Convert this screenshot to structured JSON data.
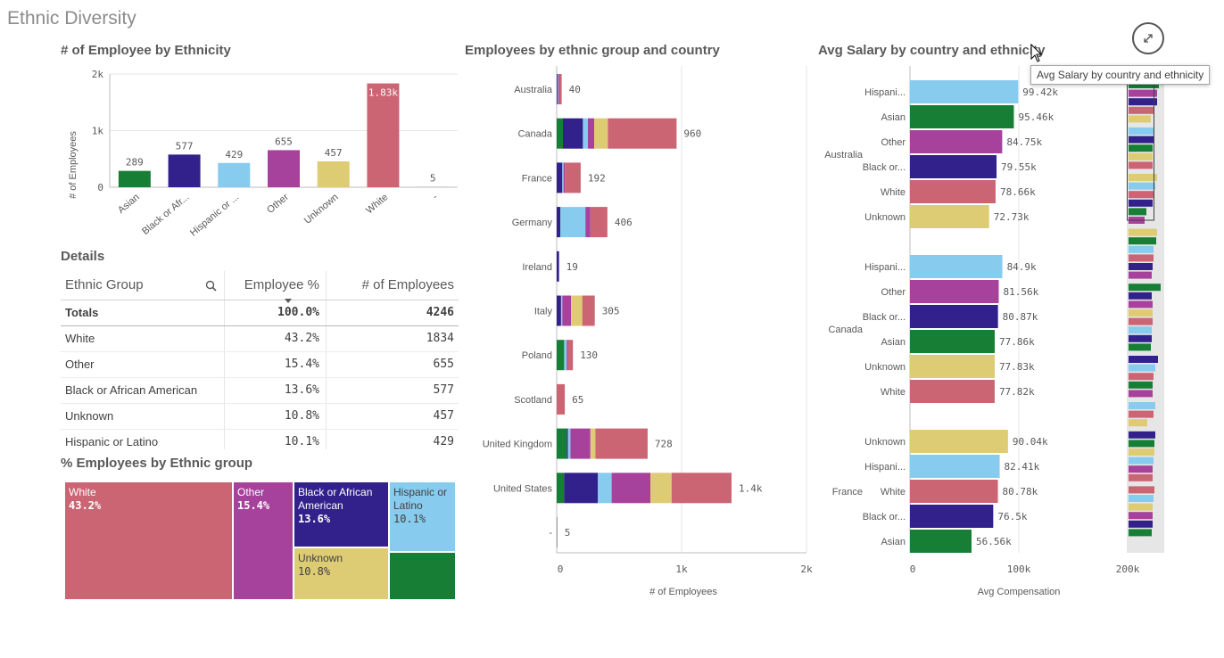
{
  "sheet": {
    "title": "Ethnic Diversity"
  },
  "colors": {
    "Asian": "#177e35",
    "Black or African American": "#32218a",
    "Hispanic or Latino": "#87ccee",
    "Other": "#a7429c",
    "Unknown": "#ddcc74",
    "White": "#cb6473",
    "-": "#9e9e9e"
  },
  "panel1": {
    "title": "# of Employee by Ethnicity",
    "chart_data": {
      "type": "bar",
      "categories": [
        "Asian",
        "Black or Afr...",
        "Hispanic or ...",
        "Other",
        "Unknown",
        "White",
        "-"
      ],
      "values": [
        289,
        577,
        429,
        655,
        457,
        1834,
        5
      ],
      "value_labels": [
        "289",
        "577",
        "429",
        "655",
        "457",
        "1.83k",
        "5"
      ],
      "ylabel": "# of Employees",
      "yticks": [
        "0",
        "1k",
        "2k"
      ],
      "ylim": [
        0,
        2000
      ],
      "grid": true
    }
  },
  "details": {
    "title": "Details",
    "headers": {
      "group": "Ethnic Group",
      "pct": "Employee %",
      "count": "# of Employees"
    },
    "totals": {
      "label": "Totals",
      "pct": "100.0%",
      "count": "4246"
    },
    "rows": [
      {
        "group": "White",
        "pct": "43.2%",
        "count": "1834"
      },
      {
        "group": "Other",
        "pct": "15.4%",
        "count": "655"
      },
      {
        "group": "Black or African American",
        "pct": "13.6%",
        "count": "577"
      },
      {
        "group": "Unknown",
        "pct": "10.8%",
        "count": "457"
      },
      {
        "group": "Hispanic or Latino",
        "pct": "10.1%",
        "count": "429"
      }
    ]
  },
  "treemap": {
    "title": "% Employees by Ethnic group",
    "tiles": {
      "white": {
        "name": "White",
        "pct": "43.2%"
      },
      "other": {
        "name": "Other",
        "pct": "15.4%"
      },
      "black": {
        "name": "Black or African American",
        "pct": "13.6%"
      },
      "unknown": {
        "name": "Unknown",
        "pct": "10.8%"
      },
      "hispanic": {
        "name": "Hispanic or Latino",
        "pct": "10.1%"
      }
    }
  },
  "panel2": {
    "title": "Employees by ethnic group and country",
    "chart_data": {
      "type": "bar",
      "orientation": "horizontal",
      "stacked": true,
      "categories": [
        "Australia",
        "Canada",
        "France",
        "Germany",
        "Ireland",
        "Italy",
        "Poland",
        "Scotland",
        "United Kingdom",
        "United States",
        "-"
      ],
      "totals": [
        40,
        960,
        192,
        406,
        19,
        305,
        130,
        65,
        728,
        1400,
        5
      ],
      "total_labels": [
        "40",
        "960",
        "192",
        "406",
        "19",
        "305",
        "130",
        "65",
        "728",
        "1.4k",
        "5"
      ],
      "segments": [
        [
          [
            "Black or African American",
            6
          ],
          [
            "Hispanic or Latino",
            6
          ],
          [
            "Other",
            6
          ],
          [
            "White",
            22
          ]
        ],
        [
          [
            "Asian",
            50
          ],
          [
            "Black or African American",
            160
          ],
          [
            "Hispanic or Latino",
            40
          ],
          [
            "Other",
            50
          ],
          [
            "Unknown",
            110
          ],
          [
            "White",
            550
          ]
        ],
        [
          [
            "Black or African American",
            45
          ],
          [
            "Hispanic or Latino",
            10
          ],
          [
            "Other",
            10
          ],
          [
            "White",
            127
          ]
        ],
        [
          [
            "Black or African American",
            30
          ],
          [
            "Hispanic or Latino",
            200
          ],
          [
            "Other",
            40
          ],
          [
            "White",
            136
          ]
        ],
        [
          [
            "Black or African American",
            19
          ]
        ],
        [
          [
            "Black or African American",
            35
          ],
          [
            "Hispanic or Latino",
            10
          ],
          [
            "Other",
            70
          ],
          [
            "Unknown",
            90
          ],
          [
            "White",
            100
          ]
        ],
        [
          [
            "Asian",
            60
          ],
          [
            "Hispanic or Latino",
            20
          ],
          [
            "Other",
            10
          ],
          [
            "White",
            40
          ]
        ],
        [
          [
            "White",
            65
          ]
        ],
        [
          [
            "Asian",
            80
          ],
          [
            "Black or African American",
            10
          ],
          [
            "Hispanic or Latino",
            20
          ],
          [
            "Other",
            160
          ],
          [
            "Unknown",
            40
          ],
          [
            "White",
            418
          ]
        ],
        [
          [
            "Asian",
            60
          ],
          [
            "Black or African American",
            270
          ],
          [
            "Hispanic or Latino",
            110
          ],
          [
            "Other",
            310
          ],
          [
            "Unknown",
            170
          ],
          [
            "White",
            480
          ]
        ],
        [
          [
            "-",
            5
          ]
        ]
      ],
      "xticks": [
        "0",
        "1k",
        "2k"
      ],
      "xlim": [
        0,
        2000
      ],
      "xlabel": "# of Employees"
    }
  },
  "panel3": {
    "title": "Avg Salary by country and ethnicity",
    "chart_data": {
      "type": "bar",
      "orientation": "horizontal",
      "groups": [
        {
          "country": "Australia",
          "rows": [
            {
              "label": "Hispani...",
              "eth": "Hispanic or Latino",
              "value": 99420,
              "text": "99.42k"
            },
            {
              "label": "Asian",
              "eth": "Asian",
              "value": 95460,
              "text": "95.46k"
            },
            {
              "label": "Other",
              "eth": "Other",
              "value": 84750,
              "text": "84.75k"
            },
            {
              "label": "Black or...",
              "eth": "Black or African American",
              "value": 79550,
              "text": "79.55k"
            },
            {
              "label": "White",
              "eth": "White",
              "value": 78660,
              "text": "78.66k"
            },
            {
              "label": "Unknown",
              "eth": "Unknown",
              "value": 72730,
              "text": "72.73k"
            }
          ]
        },
        {
          "country": "Canada",
          "rows": [
            {
              "label": "Hispani...",
              "eth": "Hispanic or Latino",
              "value": 84900,
              "text": "84.9k"
            },
            {
              "label": "Other",
              "eth": "Other",
              "value": 81560,
              "text": "81.56k"
            },
            {
              "label": "Black or...",
              "eth": "Black or African American",
              "value": 80870,
              "text": "80.87k"
            },
            {
              "label": "Asian",
              "eth": "Asian",
              "value": 77860,
              "text": "77.86k"
            },
            {
              "label": "Unknown",
              "eth": "Unknown",
              "value": 77830,
              "text": "77.83k"
            },
            {
              "label": "White",
              "eth": "White",
              "value": 77820,
              "text": "77.82k"
            }
          ]
        },
        {
          "country": "France",
          "rows": [
            {
              "label": "Unknown",
              "eth": "Unknown",
              "value": 90040,
              "text": "90.04k"
            },
            {
              "label": "Hispani...",
              "eth": "Hispanic or Latino",
              "value": 82410,
              "text": "82.41k"
            },
            {
              "label": "White",
              "eth": "White",
              "value": 80780,
              "text": "80.78k"
            },
            {
              "label": "Black or...",
              "eth": "Black or African American",
              "value": 76500,
              "text": "76.5k"
            },
            {
              "label": "Asian",
              "eth": "Asian",
              "value": 56560,
              "text": "56.56k"
            }
          ]
        }
      ],
      "xticks": [
        "0",
        "100k",
        "200k"
      ],
      "xlim": [
        0,
        200000
      ],
      "xlabel": "Avg Compensation"
    },
    "minimap": {
      "bars": [
        [
          "Asian",
          0.94
        ],
        [
          "Other",
          0.9
        ],
        [
          "Black or African American",
          0.88
        ],
        [
          "White",
          0.78
        ],
        [
          "Unknown",
          0.7
        ],
        [
          "Hispanic or Latino",
          0.8
        ],
        [
          "Black or African American",
          0.78
        ],
        [
          "Asian",
          0.75
        ],
        [
          "Unknown",
          0.75
        ],
        [
          "White",
          0.75
        ],
        [
          "Unknown",
          0.9
        ],
        [
          "Hispanic or Latino",
          0.82
        ],
        [
          "White",
          0.8
        ],
        [
          "Black or African American",
          0.76
        ],
        [
          "Asian",
          0.55
        ],
        [
          "Other",
          0.5
        ],
        [
          "Unknown",
          0.9
        ],
        [
          "Asian",
          0.85
        ],
        [
          "Hispanic or Latino",
          0.78
        ],
        [
          "White",
          0.78
        ],
        [
          "Black or African American",
          0.76
        ],
        [
          "Other",
          0.72
        ],
        [
          "Asian",
          1.0
        ],
        [
          "Black or African American",
          0.72
        ],
        [
          "Other",
          0.76
        ],
        [
          "Unknown",
          0.74
        ],
        [
          "White",
          0.74
        ],
        [
          "Hispanic or Latino",
          0.72
        ],
        [
          "Black or African American",
          0.72
        ],
        [
          "Asian",
          0.7
        ],
        [
          "Black or African American",
          0.92
        ],
        [
          "Hispanic or Latino",
          0.82
        ],
        [
          "White",
          0.78
        ],
        [
          "Asian",
          0.76
        ],
        [
          "Other",
          0.74
        ],
        [
          "Hispanic or Latino",
          0.84
        ],
        [
          "White",
          0.78
        ],
        [
          "Unknown",
          0.58
        ],
        [
          "Black or African American",
          0.82
        ],
        [
          "Asian",
          0.8
        ],
        [
          "Unknown",
          0.8
        ],
        [
          "Hispanic or Latino",
          0.78
        ],
        [
          "Other",
          0.76
        ],
        [
          "White",
          0.74
        ],
        [
          "White",
          0.8
        ],
        [
          "Hispanic or Latino",
          0.78
        ],
        [
          "Unknown",
          0.76
        ],
        [
          "Other",
          0.74
        ],
        [
          "Black or African American",
          0.74
        ],
        [
          "Asian",
          0.72
        ]
      ]
    },
    "tooltip": "Avg Salary by country and ethnicity"
  }
}
